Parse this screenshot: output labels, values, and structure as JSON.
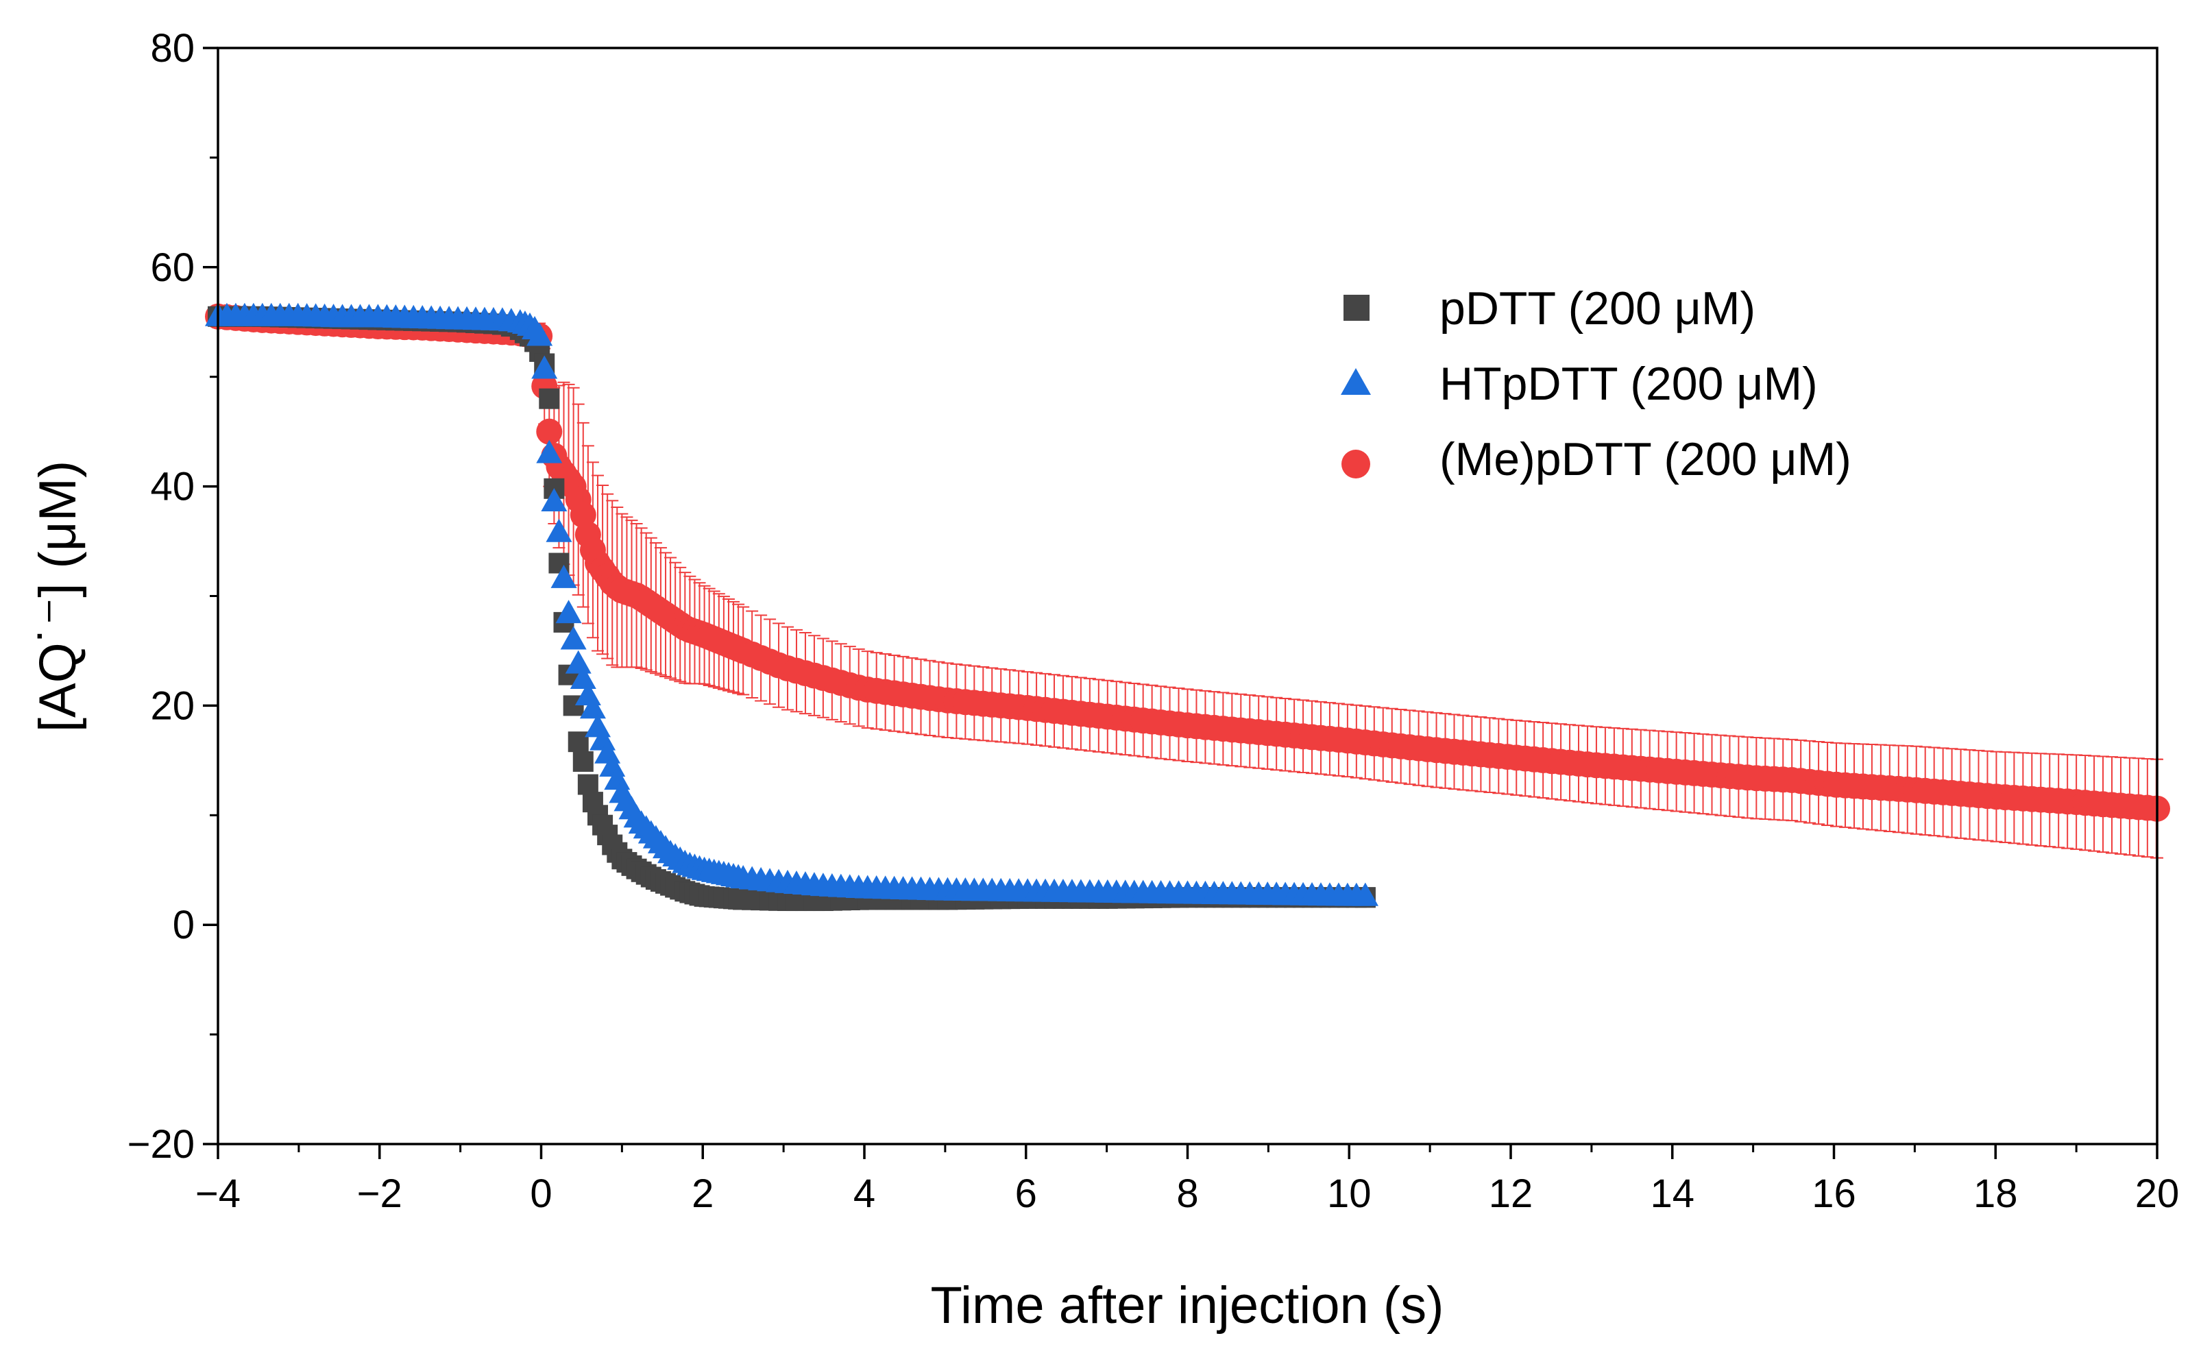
{
  "chart_data": {
    "type": "scatter",
    "title": "",
    "xlabel": "Time after injection (s)",
    "ylabel": "[AQ˙⁻] (μM)",
    "xlim": [
      -4,
      20
    ],
    "ylim": [
      -20,
      80
    ],
    "xticks": [
      -4,
      -2,
      0,
      2,
      4,
      6,
      8,
      10,
      12,
      14,
      16,
      18,
      20
    ],
    "xtick_labels": [
      "−4",
      "−2",
      "0",
      "2",
      "4",
      "6",
      "8",
      "10",
      "12",
      "14",
      "16",
      "18",
      "20"
    ],
    "yticks": [
      -20,
      0,
      20,
      40,
      60,
      80
    ],
    "ytick_labels": [
      "−20",
      "0",
      "20",
      "40",
      "60",
      "80"
    ],
    "grid": false,
    "legend_position": "top-right",
    "series": [
      {
        "name": "pDTT (200 μM)",
        "color": "#454545",
        "marker": "square",
        "x": [
          -4.0,
          -3.5,
          -3.0,
          -2.5,
          -2.0,
          -1.5,
          -1.0,
          -0.5,
          -0.3,
          -0.2,
          -0.1,
          0.0,
          0.05,
          0.1,
          0.15,
          0.2,
          0.25,
          0.3,
          0.35,
          0.4,
          0.45,
          0.5,
          0.55,
          0.6,
          0.65,
          0.7,
          0.8,
          0.9,
          1.0,
          1.2,
          1.4,
          1.6,
          1.8,
          2.0,
          2.5,
          3.0,
          3.5,
          4.0,
          5.0,
          6.0,
          7.0,
          8.0,
          9.0,
          10.0,
          10.2
        ],
        "y": [
          55.5,
          55.5,
          55.4,
          55.3,
          55.2,
          55.1,
          55.0,
          54.8,
          54.5,
          54.0,
          53.5,
          52.0,
          51.0,
          48.0,
          41.0,
          35.0,
          30.0,
          26.0,
          22.0,
          20.0,
          17.0,
          15.5,
          14.0,
          12.0,
          11.0,
          10.0,
          8.5,
          7.0,
          6.0,
          5.0,
          4.2,
          3.6,
          3.0,
          2.6,
          2.3,
          2.2,
          2.2,
          2.3,
          2.3,
          2.4,
          2.4,
          2.5,
          2.5,
          2.5,
          2.5
        ]
      },
      {
        "name": "HTpDTT (200 μM)",
        "color": "#1d6fdc",
        "marker": "triangle",
        "x": [
          -4.0,
          -3.5,
          -3.0,
          -2.5,
          -2.0,
          -1.5,
          -1.0,
          -0.5,
          -0.3,
          -0.2,
          -0.1,
          0.0,
          0.05,
          0.1,
          0.15,
          0.2,
          0.25,
          0.3,
          0.35,
          0.4,
          0.45,
          0.5,
          0.55,
          0.6,
          0.65,
          0.7,
          0.8,
          0.9,
          1.0,
          1.2,
          1.4,
          1.6,
          1.8,
          2.0,
          2.5,
          3.0,
          3.5,
          4.0,
          5.0,
          6.0,
          7.0,
          8.0,
          9.0,
          10.0,
          10.2
        ],
        "y": [
          55.5,
          55.5,
          55.5,
          55.4,
          55.4,
          55.3,
          55.2,
          55.1,
          55.0,
          54.8,
          54.5,
          53.5,
          50.0,
          43.0,
          39.0,
          37.0,
          34.0,
          30.0,
          28.0,
          26.0,
          24.0,
          23.0,
          21.5,
          20.5,
          19.5,
          18.0,
          16.0,
          14.0,
          12.0,
          9.5,
          8.0,
          6.5,
          5.5,
          5.0,
          4.2,
          3.8,
          3.5,
          3.3,
          3.1,
          3.0,
          2.9,
          2.8,
          2.7,
          2.6,
          2.6
        ]
      },
      {
        "name": "(Me)pDTT (200 μM)",
        "color": "#ef3e3e",
        "marker": "circle",
        "x": [
          -4.0,
          -3.5,
          -3.0,
          -2.5,
          -2.0,
          -1.5,
          -1.0,
          -0.5,
          -0.3,
          -0.2,
          -0.1,
          0.0,
          0.05,
          0.1,
          0.15,
          0.2,
          0.25,
          0.3,
          0.4,
          0.5,
          0.6,
          0.7,
          0.8,
          0.9,
          1.0,
          1.2,
          1.4,
          1.6,
          1.8,
          2.0,
          2.5,
          3.0,
          3.5,
          4.0,
          5.0,
          6.0,
          7.0,
          8.0,
          9.0,
          10.0,
          11.0,
          12.0,
          13.0,
          14.0,
          15.0,
          15.5,
          16.0,
          17.0,
          18.0,
          19.0,
          20.0
        ],
        "y": [
          55.5,
          55.2,
          55.0,
          54.8,
          54.6,
          54.5,
          54.3,
          54.1,
          54.0,
          53.9,
          53.8,
          53.7,
          48.0,
          45.0,
          43.0,
          42.0,
          41.5,
          41.0,
          40.0,
          38.0,
          35.0,
          33.0,
          32.0,
          31.0,
          30.5,
          30.0,
          29.0,
          28.0,
          27.0,
          26.5,
          25.0,
          23.5,
          22.5,
          21.5,
          20.5,
          19.8,
          19.0,
          18.2,
          17.5,
          16.8,
          16.0,
          15.3,
          14.6,
          14.0,
          13.4,
          13.2,
          12.8,
          12.3,
          11.7,
          11.2,
          10.6
        ],
        "error": [
          1.0,
          1.0,
          1.0,
          1.0,
          1.0,
          1.0,
          1.0,
          1.0,
          1.0,
          1.0,
          1.0,
          1.2,
          4.0,
          5.0,
          6.0,
          7.0,
          8.0,
          8.5,
          9.0,
          8.5,
          8.0,
          8.0,
          7.5,
          7.5,
          7.0,
          6.5,
          6.0,
          5.5,
          5.0,
          4.5,
          4.0,
          3.8,
          3.6,
          3.5,
          3.4,
          3.3,
          3.3,
          3.3,
          3.3,
          3.3,
          3.4,
          3.4,
          3.5,
          3.6,
          3.7,
          3.7,
          3.8,
          4.0,
          4.1,
          4.3,
          4.5
        ]
      }
    ]
  }
}
